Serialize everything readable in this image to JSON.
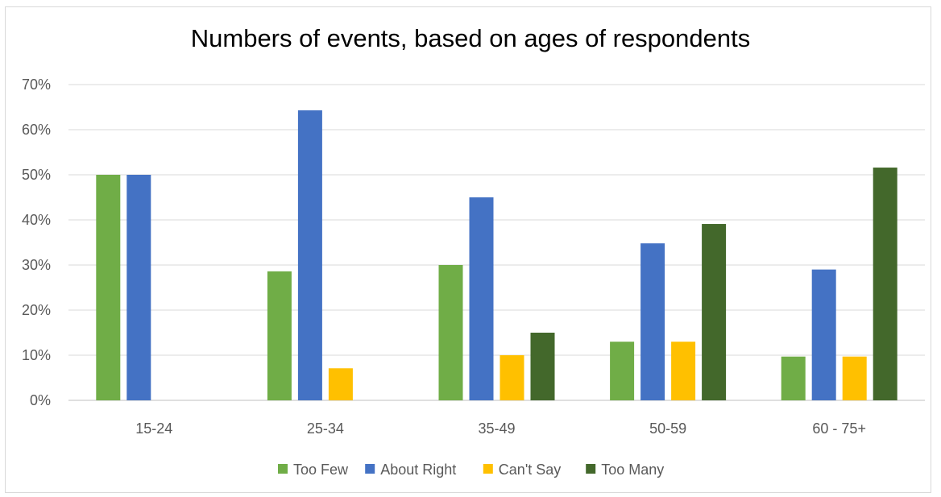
{
  "chart_data": {
    "type": "bar",
    "title": "Numbers of events, based on ages of respondents",
    "xlabel": "",
    "ylabel": "",
    "categories": [
      "15-24",
      "25-34",
      "35-49",
      "50-59",
      "60 - 75+"
    ],
    "ylim": [
      0,
      0.7
    ],
    "yticks": [
      0,
      0.1,
      0.2,
      0.3,
      0.4,
      0.5,
      0.6,
      0.7
    ],
    "ytick_labels": [
      "0%",
      "10%",
      "20%",
      "30%",
      "40%",
      "50%",
      "60%",
      "70%"
    ],
    "grid": true,
    "legend_position": "bottom",
    "series": [
      {
        "name": "Too Few",
        "color": "#70ad47",
        "values": [
          0.5,
          0.286,
          0.3,
          0.13,
          0.097
        ]
      },
      {
        "name": "About Right",
        "color": "#4472c4",
        "values": [
          0.5,
          0.643,
          0.45,
          0.348,
          0.29
        ]
      },
      {
        "name": "Can't Say",
        "color": "#ffc000",
        "values": [
          0,
          0.071,
          0.1,
          0.13,
          0.097
        ]
      },
      {
        "name": "Too Many",
        "color": "#43682b",
        "values": [
          0,
          0,
          0.15,
          0.391,
          0.516
        ]
      }
    ]
  }
}
